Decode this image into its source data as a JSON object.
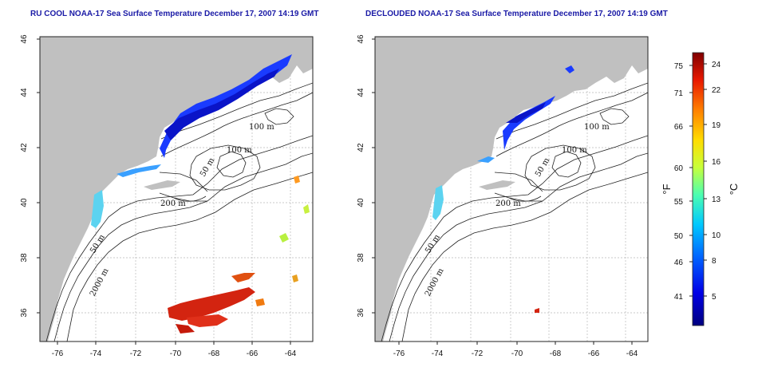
{
  "panels": {
    "left": {
      "title": "RU COOL NOAA-17 Sea Surface Temperature December 17, 2007 14:19 GMT"
    },
    "right": {
      "title": "DECLOUDED NOAA-17 Sea Surface Temperature December 17, 2007 14:19 GMT"
    }
  },
  "axes": {
    "longitude_ticks": [
      "-76",
      "-74",
      "-72",
      "-70",
      "-68",
      "-66",
      "-64"
    ],
    "latitude_ticks": [
      "46",
      "44",
      "42",
      "40",
      "38",
      "36"
    ]
  },
  "contour_labels": {
    "c100a": "100 m",
    "c100b": "100 m",
    "c50a": "50 m",
    "c200": "200 m",
    "c50b": "50 m",
    "c2000": "2000 m"
  },
  "colorbar": {
    "fahrenheit_label": "°F",
    "celsius_label": "°C",
    "fahrenheit_ticks": [
      "75",
      "71",
      "66",
      "60",
      "55",
      "50",
      "46",
      "41"
    ],
    "celsius_ticks": [
      "24",
      "22",
      "19",
      "16",
      "13",
      "10",
      "8",
      "5"
    ]
  },
  "colors": {
    "land": "#c0c0c0",
    "ocean": "#ffffff",
    "title": "#1a1aa6",
    "grid": "#b8b8b8"
  }
}
